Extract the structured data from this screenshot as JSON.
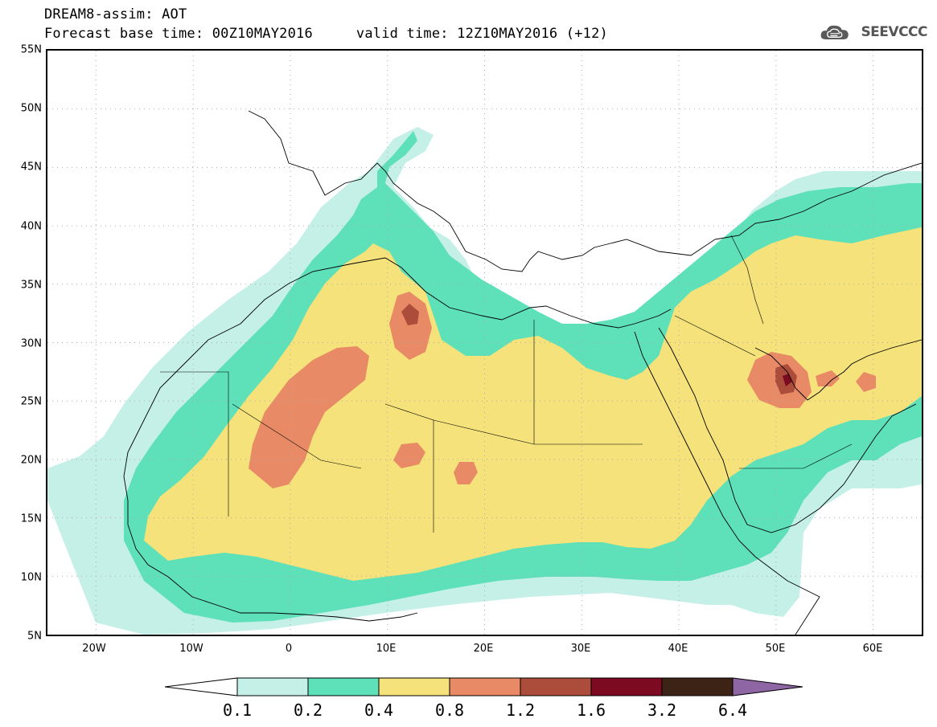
{
  "title": {
    "line1": "DREAM8-assim: AOT",
    "base_time": "Forecast base time: 00Z10MAY2016",
    "valid_time": "valid time: 12Z10MAY2016 (+12)"
  },
  "logo": {
    "text": "SEEVCCC",
    "icon": "cloud-icon"
  },
  "lat_ticks": [
    "55N",
    "50N",
    "45N",
    "40N",
    "35N",
    "30N",
    "25N",
    "20N",
    "15N",
    "10N",
    "5N"
  ],
  "lon_ticks": [
    "20W",
    "10W",
    "0",
    "10E",
    "20E",
    "30E",
    "40E",
    "50E",
    "60E"
  ],
  "colorbar": {
    "labels": [
      "0.1",
      "0.2",
      "0.4",
      "0.8",
      "1.2",
      "1.6",
      "3.2",
      "6.4"
    ],
    "colors": [
      "#ffffff",
      "#c4f0e8",
      "#5ee0b9",
      "#f5e27a",
      "#e88a65",
      "#ac4c3a",
      "#7c0a20",
      "#3d2316",
      "#8f66a4"
    ]
  },
  "map": {
    "extent": {
      "lon_min": -25,
      "lon_max": 65,
      "lat_min": 5,
      "lat_max": 55
    },
    "colors": {
      "c1": "#c4f0e8",
      "c2": "#5ee0b9",
      "c3": "#f5e27a",
      "c4": "#e88a65",
      "c5": "#ac4c3a",
      "c6": "#7c0a20"
    }
  }
}
